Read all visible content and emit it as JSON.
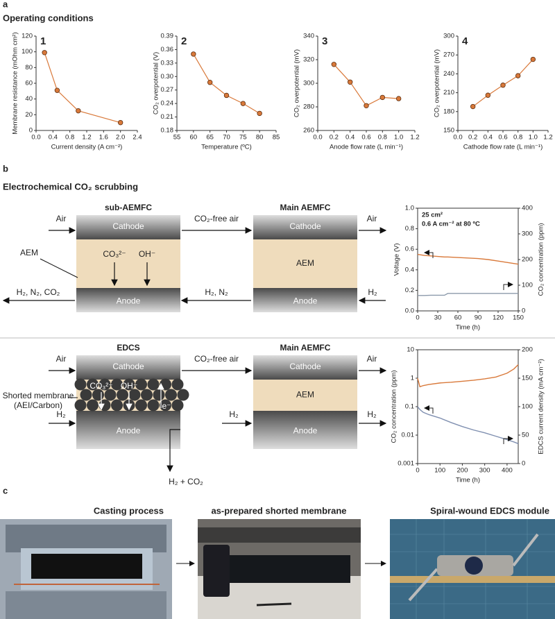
{
  "panel_a": {
    "label": "a",
    "title": "Operating conditions"
  },
  "panel_b": {
    "label": "b",
    "title": "Electrochemical CO₂ scrubbing"
  },
  "panel_c": {
    "label": "c",
    "photos": [
      "Casting process",
      "as-prepared shorted membrane",
      "Spiral-wound EDCS module"
    ]
  },
  "chart_data": [
    {
      "type": "line",
      "label": "1",
      "x_label": "Current density (A cm⁻²)",
      "y_label": "Membrane resistance (mOhm cm²)",
      "markers": true,
      "x": [
        0.2,
        0.5,
        1.0,
        2.0
      ],
      "series": [
        {
          "color": "#d9793a",
          "values": [
            99,
            51,
            25,
            10
          ]
        }
      ],
      "xlim": [
        0,
        2.4
      ],
      "xticks": [
        {
          "value": 0,
          "label": "0.0"
        },
        0.4,
        0.8,
        1.2,
        1.6,
        {
          "value": 2,
          "label": "2.0"
        },
        2.4
      ],
      "ylim": [
        0,
        120
      ],
      "yticks": [
        0,
        20,
        40,
        60,
        80,
        100,
        120
      ]
    },
    {
      "type": "line",
      "label": "2",
      "x_label": "Temperature (ºC)",
      "y_label": "CO₂ overpotential (V)",
      "markers": true,
      "x": [
        60,
        65,
        70,
        75,
        80
      ],
      "series": [
        {
          "color": "#d9793a",
          "values": [
            0.35,
            0.287,
            0.258,
            0.24,
            0.218
          ]
        }
      ],
      "xlim": [
        55,
        85
      ],
      "xticks": [
        55,
        60,
        65,
        70,
        75,
        80,
        85
      ],
      "ylim": [
        0.18,
        0.39
      ],
      "yticks": [
        0.18,
        0.21,
        0.24,
        0.27,
        {
          "value": 0.3,
          "label": "0.30"
        },
        0.33,
        0.36,
        0.39
      ]
    },
    {
      "type": "line",
      "label": "3",
      "x_label": "Anode flow rate (L min⁻¹)",
      "y_label": "CO₂ overpotential (mV)",
      "markers": true,
      "x": [
        0.2,
        0.4,
        0.6,
        0.8,
        1.0
      ],
      "series": [
        {
          "color": "#d9793a",
          "values": [
            316,
            301,
            281,
            288,
            287
          ]
        }
      ],
      "xlim": [
        0,
        1.2
      ],
      "xticks": [
        {
          "value": 0,
          "label": "0.0"
        },
        0.2,
        0.4,
        0.6,
        0.8,
        {
          "value": 1,
          "label": "1.0"
        },
        1.2
      ],
      "ylim": [
        260,
        340
      ],
      "yticks": [
        260,
        280,
        300,
        320,
        340
      ]
    },
    {
      "type": "line",
      "label": "4",
      "x_label": "Cathode flow rate (L min⁻¹)",
      "y_label": "CO₂ overpotential (mV)",
      "markers": true,
      "x": [
        0.2,
        0.4,
        0.6,
        0.8,
        1.0
      ],
      "series": [
        {
          "color": "#d9793a",
          "values": [
            188,
            206,
            222,
            237,
            263
          ]
        }
      ],
      "xlim": [
        0,
        1.2
      ],
      "xticks": [
        {
          "value": 0,
          "label": "0.0"
        },
        0.2,
        0.4,
        0.6,
        0.8,
        {
          "value": 1,
          "label": "1.0"
        },
        1.2
      ],
      "ylim": [
        150,
        300
      ],
      "yticks": [
        150,
        180,
        210,
        240,
        270,
        300
      ]
    },
    {
      "type": "line",
      "x_label": "Time (h)",
      "y_label": "Voltage (V)",
      "y2_label": "CO₂ concentration (ppm)",
      "annotations": [
        "25 cm²",
        "0.6 A cm⁻² at 80 ºC"
      ],
      "x": [
        0,
        10,
        20,
        30,
        40,
        45,
        60,
        75,
        90,
        105,
        120,
        135,
        150
      ],
      "series": [
        {
          "color": "#d9793a",
          "values": [
            0.55,
            0.54,
            0.535,
            0.53,
            0.525,
            0.525,
            0.52,
            0.515,
            0.51,
            0.5,
            0.485,
            0.47,
            0.455
          ]
        },
        {
          "color": "#8c9aab",
          "axis": "y2",
          "values": [
            60,
            60,
            61,
            61,
            61,
            68,
            68,
            68,
            68,
            68,
            68,
            68,
            68
          ]
        }
      ],
      "xlim": [
        0,
        150
      ],
      "xticks": [
        0,
        30,
        60,
        90,
        120,
        150
      ],
      "ylim": [
        0,
        1
      ],
      "yticks": [
        {
          "value": 0,
          "label": "0.0"
        },
        0.2,
        0.4,
        0.6,
        0.8,
        {
          "value": 1,
          "label": "1.0"
        }
      ],
      "y2lim": [
        0,
        400
      ],
      "y2ticks": [
        0,
        100,
        200,
        300,
        400
      ]
    },
    {
      "type": "line",
      "x_label": "Time (h)",
      "y_label": "CO₂ concentration (ppm)",
      "y2_label": "EDCS current density (mA cm⁻²)",
      "ylog": true,
      "x": [
        0,
        10,
        25,
        50,
        100,
        150,
        200,
        250,
        300,
        350,
        400,
        430,
        450
      ],
      "series": [
        {
          "color": "#d9793a",
          "values": [
            1.0,
            0.5,
            0.55,
            0.6,
            0.68,
            0.72,
            0.78,
            0.85,
            0.95,
            1.1,
            1.5,
            2.1,
            3.0
          ]
        },
        {
          "color": "#7f8fb0",
          "axis": "y2",
          "values": [
            100,
            95,
            90,
            86,
            80,
            72,
            65,
            59,
            54,
            48,
            42,
            38,
            35
          ]
        }
      ],
      "xlim": [
        0,
        450
      ],
      "xticks": [
        0,
        100,
        200,
        300,
        400
      ],
      "ylim": [
        0.001,
        10
      ],
      "yticks": [
        0.001,
        0.01,
        0.1,
        1,
        10
      ],
      "y2lim": [
        0,
        200
      ],
      "y2ticks": [
        0,
        50,
        100,
        150,
        200
      ]
    }
  ],
  "diagram_top": {
    "left_title": "sub-AEMFC",
    "right_title": "Main AEMFC",
    "air_in": "Air",
    "cathode_left": "Cathode",
    "middle_top": "CO₂-free air",
    "cathode_right": "Cathode",
    "air_out": "Air",
    "membrane_label": "AEM",
    "ion_1": "CO₃²⁻",
    "ion_2": "OH⁻",
    "membrane_right": "AEM",
    "exhaust": "H₂, N₂, CO₂",
    "anode_left": "Anode",
    "middle_bottom": "H₂, N₂",
    "anode_right": "Anode",
    "h2_in": "H₂"
  },
  "diagram_bottom": {
    "left_title": "EDCS",
    "right_title": "Main AEMFC",
    "air_in": "Air",
    "cathode_left": "Cathode",
    "middle_top": "CO₂-free air",
    "cathode_right": "Cathode",
    "air_out": "Air",
    "membrane_label": [
      "Shorted membrane",
      "(AEI/Carbon)"
    ],
    "ion_1": "CO₃²⁻",
    "ion_2": "OH⁻",
    "ion_3": "e⁻",
    "membrane_right": "AEM",
    "h2_in": "H₂",
    "anode_left": "Anode",
    "h2_mid": "H₂",
    "anode_right": "Anode",
    "h2_out": "H₂",
    "exhaust": "H₂ + CO₂"
  }
}
